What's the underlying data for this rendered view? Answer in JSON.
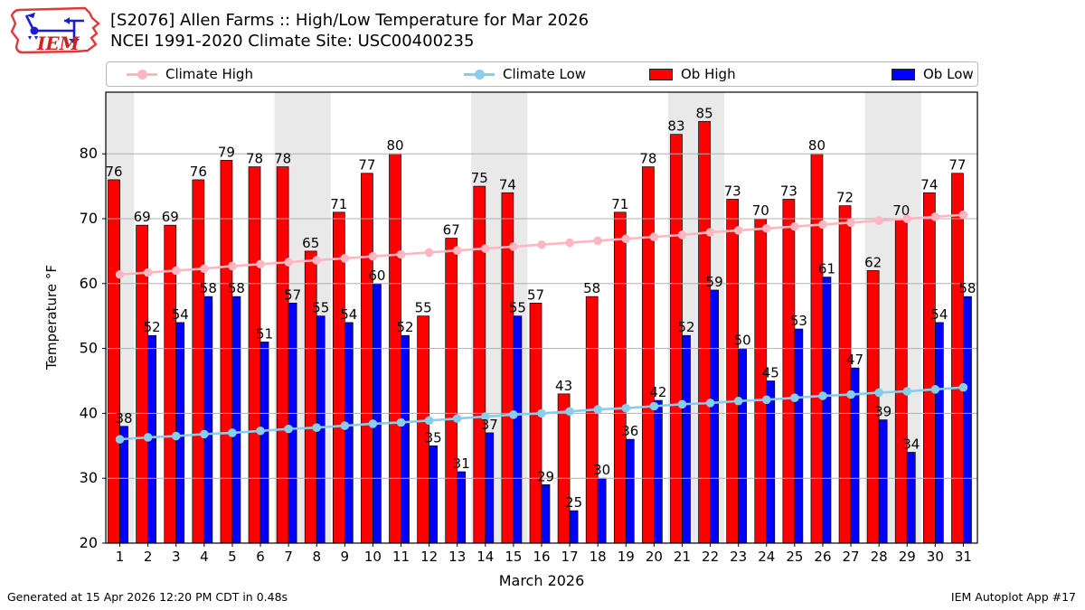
{
  "header": {
    "logo_text": "IEM",
    "title_line1": "[S2076] Allen Farms :: High/Low Temperature for Mar 2026",
    "title_line2": "NCEI 1991-2020 Climate Site: USC00400235"
  },
  "legend": {
    "climate_high": {
      "label": "Climate High",
      "color": "#ffb6c1"
    },
    "climate_low": {
      "label": "Climate Low",
      "color": "#87ceeb"
    },
    "ob_high": {
      "label": "Ob High",
      "color": "#ff0000"
    },
    "ob_low": {
      "label": "Ob Low",
      "color": "#0000ff"
    }
  },
  "chart_data": {
    "type": "bar",
    "title": "[S2076] Allen Farms :: High/Low Temperature for Mar 2026",
    "subtitle": "NCEI 1991-2020 Climate Site: USC00400235",
    "xlabel": "March 2026",
    "ylabel": "Temperature °F",
    "ylim": [
      20,
      89.5
    ],
    "y_ticks": [
      20,
      30,
      40,
      50,
      60,
      70,
      80
    ],
    "grid": true,
    "legend_position": "top",
    "categories": [
      1,
      2,
      3,
      4,
      5,
      6,
      7,
      8,
      9,
      10,
      11,
      12,
      13,
      14,
      15,
      16,
      17,
      18,
      19,
      20,
      21,
      22,
      23,
      24,
      25,
      26,
      27,
      28,
      29,
      30,
      31
    ],
    "weekend_bands": [
      [
        1,
        1
      ],
      [
        7,
        8
      ],
      [
        14,
        15
      ],
      [
        21,
        22
      ],
      [
        28,
        29
      ]
    ],
    "series": [
      {
        "name": "Ob High",
        "type": "bar",
        "color": "#ff0000",
        "labels_shown": true,
        "values": [
          76,
          69,
          69,
          76,
          79,
          78,
          78,
          65,
          71,
          77,
          80,
          55,
          67,
          75,
          74,
          57,
          43,
          58,
          71,
          78,
          83,
          85,
          73,
          70,
          73,
          80,
          72,
          62,
          70,
          74,
          77
        ]
      },
      {
        "name": "Ob Low",
        "type": "bar",
        "color": "#0000ff",
        "labels_shown": true,
        "values": [
          38,
          52,
          54,
          58,
          58,
          51,
          57,
          55,
          54,
          60,
          52,
          35,
          31,
          37,
          55,
          29,
          25,
          30,
          36,
          42,
          52,
          59,
          50,
          45,
          53,
          61,
          47,
          39,
          34,
          54,
          58
        ]
      },
      {
        "name": "Climate High",
        "type": "line",
        "color": "#ffb6c1",
        "labels_shown": false,
        "values": [
          61.4,
          61.7,
          62.0,
          62.3,
          62.7,
          63.0,
          63.3,
          63.6,
          63.9,
          64.2,
          64.5,
          64.8,
          65.1,
          65.4,
          65.7,
          66.0,
          66.3,
          66.6,
          66.9,
          67.2,
          67.5,
          67.9,
          68.2,
          68.5,
          68.8,
          69.1,
          69.4,
          69.7,
          70.0,
          70.3,
          70.6
        ]
      },
      {
        "name": "Climate Low",
        "type": "line",
        "color": "#87ceeb",
        "labels_shown": false,
        "values": [
          36.0,
          36.3,
          36.5,
          36.8,
          37.0,
          37.3,
          37.6,
          37.8,
          38.1,
          38.4,
          38.6,
          38.9,
          39.2,
          39.5,
          39.8,
          40.0,
          40.3,
          40.6,
          40.8,
          41.1,
          41.4,
          41.6,
          41.9,
          42.1,
          42.4,
          42.7,
          42.9,
          43.2,
          43.4,
          43.7,
          44.0
        ]
      }
    ]
  },
  "footer": {
    "left": "Generated at 15 Apr 2026 12:20 PM CDT in 0.48s",
    "right": "IEM Autoplot App #17"
  }
}
